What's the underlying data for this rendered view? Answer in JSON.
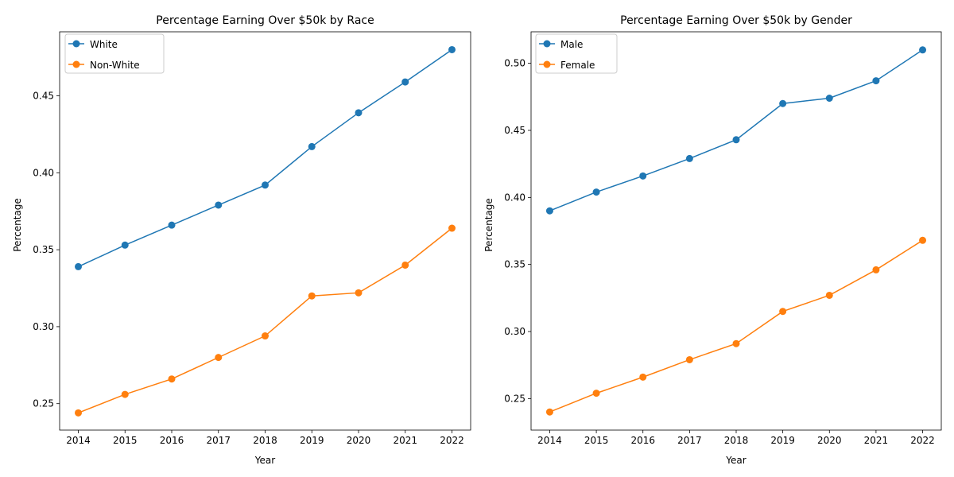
{
  "chart_data": [
    {
      "type": "line",
      "title": "Percentage Earning Over $50k by Race",
      "xlabel": "Year",
      "ylabel": "Percentage",
      "categories": [
        "2014",
        "2015",
        "2016",
        "2017",
        "2018",
        "2019",
        "2020",
        "2021",
        "2022"
      ],
      "ylim": [
        0.2328,
        0.4916
      ],
      "yticks": [
        "0.25",
        "0.30",
        "0.35",
        "0.40",
        "0.45"
      ],
      "legend": "top-left",
      "grid": false,
      "series": [
        {
          "name": "White",
          "color": "#1f77b4",
          "values": [
            0.339,
            0.353,
            0.366,
            0.379,
            0.392,
            0.417,
            0.439,
            0.459,
            0.48
          ]
        },
        {
          "name": "Non-White",
          "color": "#ff7f0e",
          "values": [
            0.244,
            0.256,
            0.266,
            0.28,
            0.294,
            0.32,
            0.322,
            0.34,
            0.364
          ]
        }
      ]
    },
    {
      "type": "line",
      "title": "Percentage Earning Over $50k by Gender",
      "xlabel": "Year",
      "ylabel": "Percentage",
      "categories": [
        "2014",
        "2015",
        "2016",
        "2017",
        "2018",
        "2019",
        "2020",
        "2021",
        "2022"
      ],
      "ylim": [
        0.2265,
        0.5235
      ],
      "yticks": [
        "0.25",
        "0.30",
        "0.35",
        "0.40",
        "0.45",
        "0.50"
      ],
      "legend": "top-left",
      "grid": false,
      "series": [
        {
          "name": "Male",
          "color": "#1f77b4",
          "values": [
            0.39,
            0.404,
            0.416,
            0.429,
            0.443,
            0.47,
            0.474,
            0.487,
            0.51
          ]
        },
        {
          "name": "Female",
          "color": "#ff7f0e",
          "values": [
            0.24,
            0.254,
            0.266,
            0.279,
            0.291,
            0.315,
            0.327,
            0.346,
            0.368
          ]
        }
      ]
    }
  ]
}
